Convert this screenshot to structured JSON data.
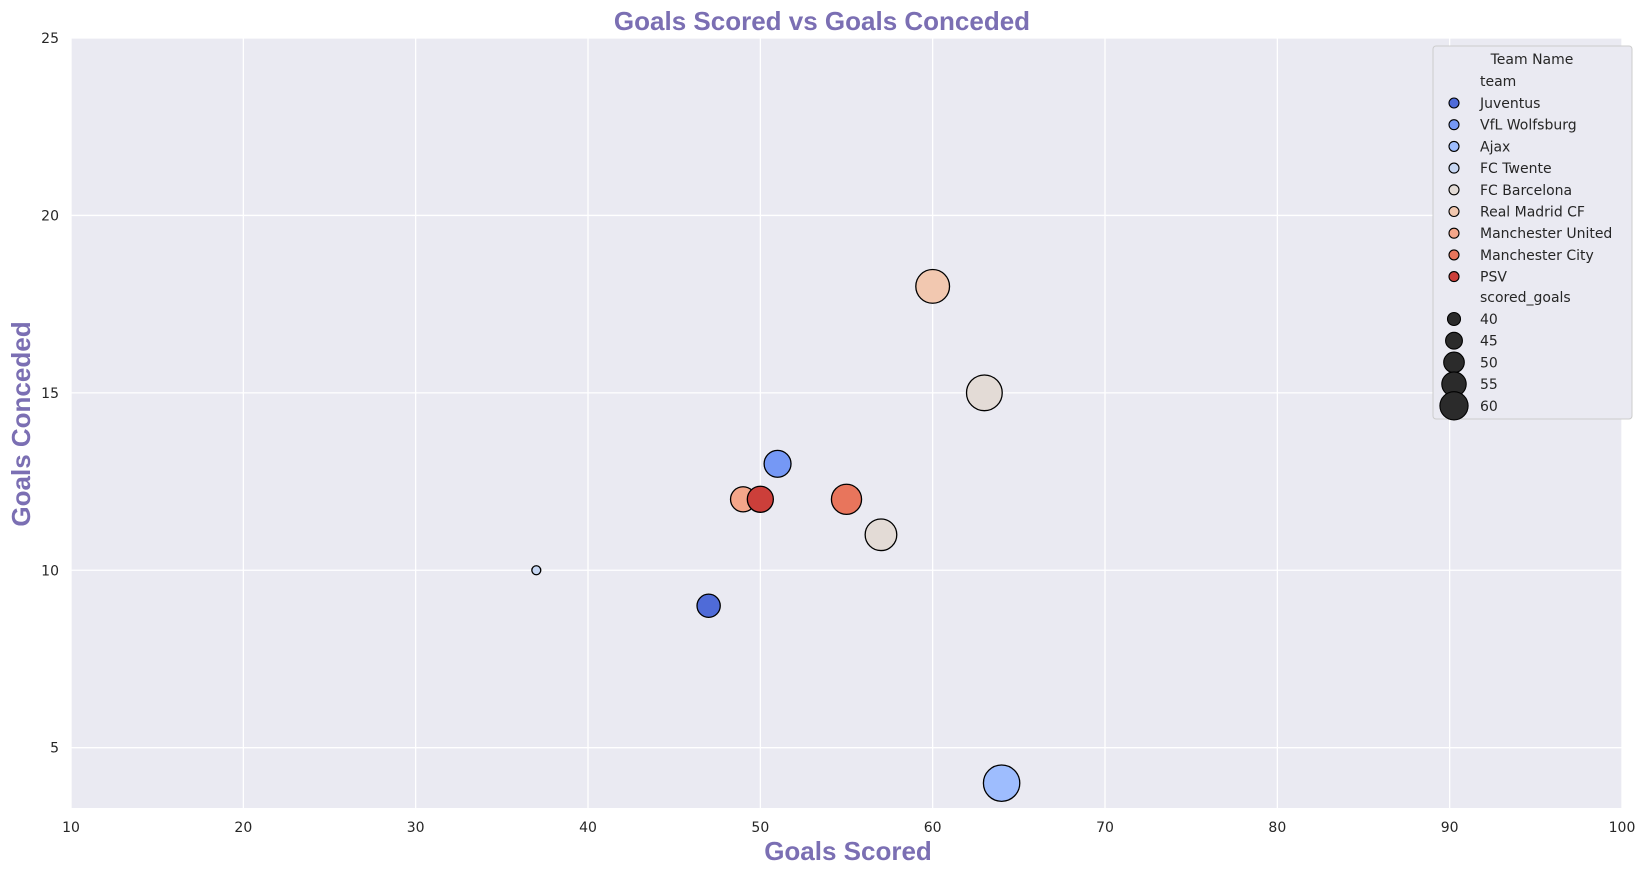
{
  "chart_data": {
    "type": "scatter",
    "title": "Goals Scored vs Goals Conceded",
    "xlabel": "Goals Scored",
    "ylabel": "Goals Conceded",
    "xlim": [
      10,
      100
    ],
    "ylim": [
      3.3,
      25
    ],
    "xticks": [
      10,
      20,
      30,
      40,
      50,
      60,
      70,
      80,
      90,
      100
    ],
    "yticks": [
      5,
      10,
      15,
      20,
      25
    ],
    "grid": true,
    "legend_position": "top-right",
    "legend": {
      "title": "Team Name",
      "hue_title": "team",
      "size_title": "scored_goals",
      "size_values": [
        40,
        45,
        50,
        55,
        60
      ]
    },
    "series": [
      {
        "name": "Juventus",
        "color": "#4f6bd8"
      },
      {
        "name": "VfL Wolfsburg",
        "color": "#7598f5"
      },
      {
        "name": "Ajax",
        "color": "#9ebdfe"
      },
      {
        "name": "FC Twente",
        "color": "#c6d6f2"
      },
      {
        "name": "FC Barcelona",
        "color": "#e3dbd6"
      },
      {
        "name": "Real Madrid CF",
        "color": "#f2c8b0"
      },
      {
        "name": "Manchester United",
        "color": "#f4a68a"
      },
      {
        "name": "Manchester City",
        "color": "#e8755c"
      },
      {
        "name": "PSV",
        "color": "#cc3f3a"
      }
    ],
    "points": [
      {
        "team": "FC Twente",
        "x": 37,
        "y": 10
      },
      {
        "team": "Juventus",
        "x": 47,
        "y": 9
      },
      {
        "team": "Manchester United",
        "x": 49,
        "y": 12
      },
      {
        "team": "PSV",
        "x": 50,
        "y": 12
      },
      {
        "team": "VfL Wolfsburg",
        "x": 51,
        "y": 13
      },
      {
        "team": "Manchester City",
        "x": 55,
        "y": 12
      },
      {
        "team": "FC Barcelona",
        "x": 57,
        "y": 11
      },
      {
        "team": "Real Madrid CF",
        "x": 60,
        "y": 18
      },
      {
        "team": "FC Barcelona",
        "x": 63,
        "y": 15
      },
      {
        "team": "Ajax",
        "x": 64,
        "y": 4
      }
    ]
  },
  "colors": {
    "plot_background": "#eaeaf2",
    "grid": "#ffffff",
    "title": "#7b6fb3",
    "size_marker": "#2b2b2b",
    "marker_edge": "#000000"
  }
}
